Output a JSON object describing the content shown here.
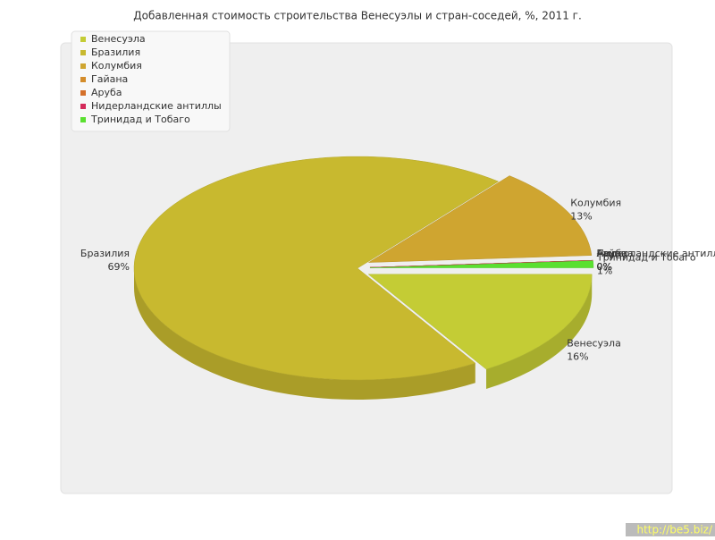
{
  "chart_data": {
    "type": "pie",
    "title": "Добавленная стоимость строительства Венесуэлы и стран-соседей, %, 2011 г.",
    "categories": [
      "Венесуэла",
      "Бразилия",
      "Колумбия",
      "Гайана",
      "Аруба",
      "Нидерландские антиллы",
      "Тринидад и Тобаго"
    ],
    "values": [
      16,
      69,
      13,
      0,
      0,
      0,
      1
    ],
    "value_labels": [
      "16%",
      "69%",
      "13%",
      "0%",
      "0%",
      "0%",
      "1%"
    ],
    "colors": [
      "#c4cc35",
      "#c8b92f",
      "#cfa530",
      "#d48c2a",
      "#d4702a",
      "#d42a5a",
      "#5ae030"
    ],
    "legend": "top-left"
  },
  "watermark": "http://be5.biz/"
}
